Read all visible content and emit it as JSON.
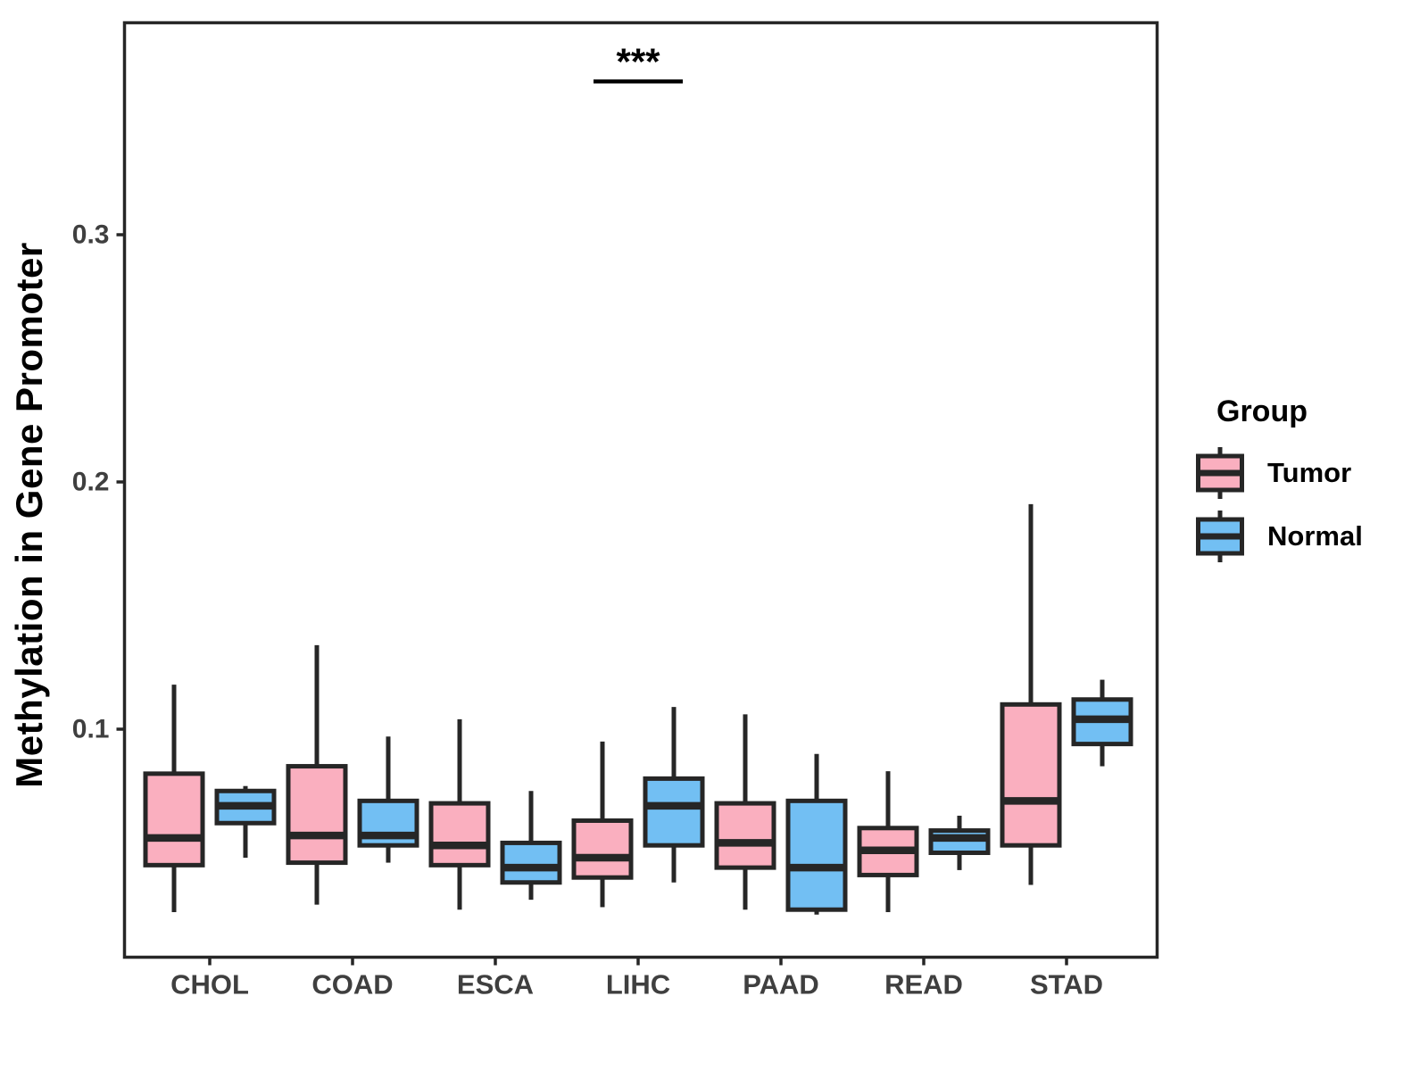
{
  "chart_data": {
    "type": "boxplot",
    "title": "",
    "xlabel": "",
    "ylabel": "Methylation in Gene Promoter",
    "categories": [
      "CHOL",
      "COAD",
      "ESCA",
      "LIHC",
      "PAAD",
      "READ",
      "STAD"
    ],
    "y_ticks": [
      0.1,
      0.2,
      0.3
    ],
    "y_tick_labels": [
      "0.1",
      "0.2",
      "0.3"
    ],
    "ylim": [
      0.008,
      0.386
    ],
    "grid": false,
    "legend": {
      "title": "Group",
      "position": "right"
    },
    "groups": [
      {
        "name": "Tumor",
        "fill": "#FAAFBF"
      },
      {
        "name": "Normal",
        "fill": "#72BFF3"
      }
    ],
    "box_stats_order": [
      "whisker_low",
      "q1",
      "median",
      "q3",
      "whisker_high"
    ],
    "series": [
      {
        "name": "Tumor",
        "fill": "#FAAFBF",
        "values": [
          [
            0.026,
            0.045,
            0.056,
            0.082,
            0.118
          ],
          [
            0.029,
            0.046,
            0.057,
            0.085,
            0.134
          ],
          [
            0.027,
            0.045,
            0.053,
            0.07,
            0.104
          ],
          [
            0.028,
            0.04,
            0.048,
            0.063,
            0.095
          ],
          [
            0.027,
            0.044,
            0.054,
            0.07,
            0.106
          ],
          [
            0.026,
            0.041,
            0.051,
            0.06,
            0.083
          ],
          [
            0.037,
            0.053,
            0.071,
            0.11,
            0.191
          ]
        ]
      },
      {
        "name": "Normal",
        "fill": "#72BFF3",
        "values": [
          [
            0.048,
            0.062,
            0.069,
            0.075,
            0.077
          ],
          [
            0.046,
            0.053,
            0.057,
            0.071,
            0.097
          ],
          [
            0.031,
            0.038,
            0.044,
            0.054,
            0.075
          ],
          [
            0.038,
            0.053,
            0.069,
            0.08,
            0.109
          ],
          [
            0.025,
            0.027,
            0.044,
            0.071,
            0.09
          ],
          [
            0.043,
            0.05,
            0.056,
            0.059,
            0.065
          ],
          [
            0.085,
            0.094,
            0.104,
            0.112,
            0.12
          ]
        ]
      }
    ],
    "annotation": {
      "text": "***",
      "category": "LIHC",
      "line_y": 0.362,
      "text_y": 0.37
    },
    "colors": {
      "stroke": "#262626",
      "axis_text": "#3F3F3F",
      "title_text": "#000000"
    }
  }
}
